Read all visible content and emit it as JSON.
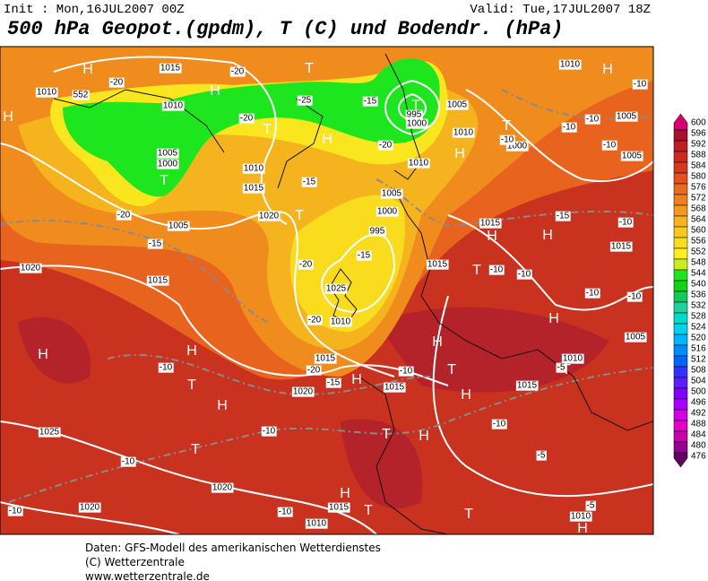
{
  "header": {
    "init": "Init : Mon,16JUL2007 00Z",
    "valid": "Valid: Tue,17JUL2007 18Z",
    "title": "500 hPa Geopot.(gpdm), T (C) und Bodendr. (hPa)"
  },
  "map": {
    "labels": [
      "H",
      "H",
      "H",
      "T",
      "T",
      "H",
      "T",
      "T",
      "T",
      "H",
      "H",
      "T",
      "H",
      "T",
      "H",
      "H",
      "T",
      "H",
      "T",
      "H",
      "H",
      "H",
      "H",
      "T",
      "H",
      "T",
      "H",
      "T",
      "T",
      "H",
      "T",
      "H",
      "1015",
      "1010",
      "552",
      "1010",
      "1005",
      "1000",
      "-20",
      "-20",
      "-25",
      "-20",
      "-15",
      "995",
      "1000",
      "1005",
      "1010",
      "-20",
      "1010",
      "1010",
      "1015",
      "-15",
      "-20",
      "1005",
      "-15",
      "1020",
      "1005",
      "1000",
      "995",
      "-15",
      "1015",
      "-20",
      "1025",
      "1010",
      "-20",
      "1015",
      "-20",
      "-15",
      "1020",
      "1015",
      "-10",
      "1010",
      "1015",
      "-10",
      "-10",
      "-10",
      "-5",
      "1025",
      "-10",
      "1020",
      "1020",
      "-10",
      "-10",
      "1015",
      "1010",
      "-5",
      "1010",
      "1010",
      "-10",
      "-10",
      "1005",
      "-10",
      "-10",
      "1005",
      "1000",
      "-10",
      "1015",
      "-15",
      "-10",
      "1015",
      "-10",
      "-10",
      "-10",
      "-10",
      "1005",
      "-5",
      "1020",
      "1015"
    ]
  },
  "colorbar": {
    "ticks": [
      600,
      596,
      592,
      588,
      584,
      580,
      576,
      572,
      568,
      564,
      560,
      556,
      552,
      548,
      544,
      540,
      536,
      532,
      528,
      524,
      520,
      516,
      512,
      508,
      504,
      500,
      496,
      492,
      488,
      484,
      480,
      476
    ],
    "colors": [
      "#d6006e",
      "#a8102c",
      "#bd1e22",
      "#cc2a1e",
      "#d8381e",
      "#e4501e",
      "#eb6a1e",
      "#f0801e",
      "#f39a1e",
      "#f7b41e",
      "#fac81e",
      "#fcdc1e",
      "#ffee1e",
      "#c8f01e",
      "#1ee61e",
      "#14d214",
      "#14c85a",
      "#1ed2a0",
      "#00dcc8",
      "#00d2f0",
      "#00b4ff",
      "#008cff",
      "#0064ff",
      "#3232ff",
      "#5a1eff",
      "#8200ff",
      "#aa00ff",
      "#d200e6",
      "#e600c8",
      "#c800aa",
      "#960096",
      "#640064"
    ]
  },
  "footer": {
    "lines": [
      "Daten: GFS-Modell des amerikanischen Wetterdienstes",
      "(C) Wetterzentrale",
      "www.wetterzentrale.de"
    ]
  }
}
